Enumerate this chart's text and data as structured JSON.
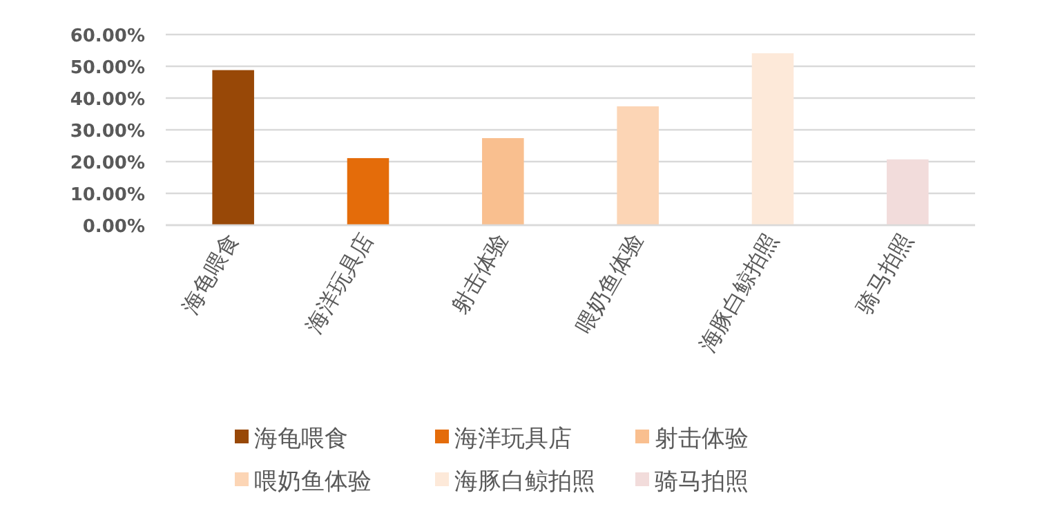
{
  "chart_data": {
    "type": "bar",
    "categories": [
      "海龟喂食",
      "海洋玩具店",
      "射击体验",
      "喂奶鱼体验",
      "海豚白鲸拍照",
      "骑马拍照"
    ],
    "series": [
      {
        "name": "海龟喂食",
        "color": "#984807",
        "values": [
          48.8,
          null,
          null,
          null,
          null,
          null
        ]
      },
      {
        "name": "海洋玩具店",
        "color": "#e46c0a",
        "values": [
          null,
          21.1,
          null,
          null,
          null,
          null
        ]
      },
      {
        "name": "射击体验",
        "color": "#f9bf8f",
        "values": [
          null,
          null,
          27.4,
          null,
          null,
          null
        ]
      },
      {
        "name": "喂奶鱼体验",
        "color": "#fcd5b5",
        "values": [
          null,
          null,
          null,
          37.4,
          null,
          null
        ]
      },
      {
        "name": "海豚白鲸拍照",
        "color": "#fde9d9",
        "values": [
          null,
          null,
          null,
          null,
          54.1,
          null
        ]
      },
      {
        "name": "骑马拍照",
        "color": "#f2dcdb",
        "values": [
          null,
          null,
          null,
          null,
          null,
          20.7
        ]
      }
    ],
    "ylim": [
      0,
      60
    ],
    "yticks": [
      {
        "value": 0,
        "label": "0.00%"
      },
      {
        "value": 10,
        "label": "10.00%"
      },
      {
        "value": 20,
        "label": "20.00%"
      },
      {
        "value": 30,
        "label": "30.00%"
      },
      {
        "value": 40,
        "label": "40.00%"
      },
      {
        "value": 50,
        "label": "50.00%"
      },
      {
        "value": 60,
        "label": "60.00%"
      }
    ],
    "grid": "y",
    "legend": "bottom"
  }
}
